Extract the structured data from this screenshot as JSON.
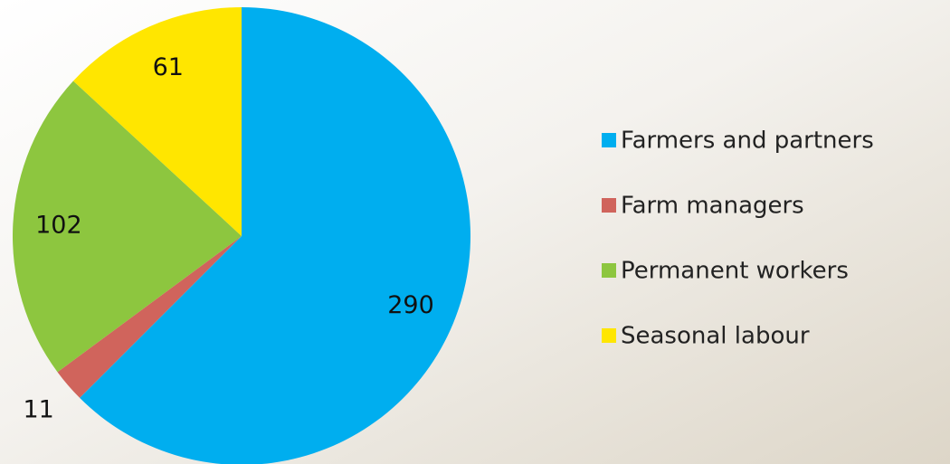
{
  "chart_data": {
    "type": "pie",
    "categories": [
      "Farmers and partners",
      "Farm managers",
      "Permanent workers",
      "Seasonal labour"
    ],
    "values": [
      290,
      11,
      102,
      61
    ],
    "colors": [
      "#00aeef",
      "#d0645c",
      "#8dc63f",
      "#ffe600"
    ],
    "legend": "right"
  }
}
